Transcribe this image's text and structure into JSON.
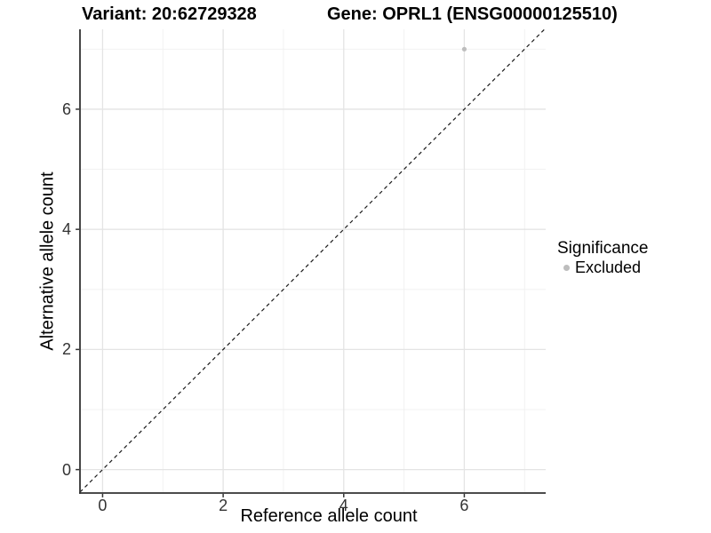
{
  "chart_data": {
    "type": "scatter",
    "title_left": "Variant: 20:62729328",
    "title_right": "Gene: OPRL1 (ENSG00000125510)",
    "xlabel": "Reference allele count",
    "ylabel": "Alternative allele count",
    "xlim": [
      -0.375,
      7.35
    ],
    "ylim": [
      -0.39,
      7.33
    ],
    "x_ticks": [
      0,
      2,
      4,
      6
    ],
    "y_ticks": [
      0,
      2,
      4,
      6
    ],
    "x_minor_ticks": [
      1,
      3,
      5,
      7
    ],
    "y_minor_ticks": [
      1,
      3,
      5,
      7
    ],
    "grid": "on",
    "reference_line": {
      "type": "identity",
      "style": "dashed",
      "x1": -0.375,
      "y1": -0.375,
      "x2": 7.33,
      "y2": 7.33
    },
    "series": [
      {
        "name": "Excluded",
        "marker": "circle",
        "color": "#bdbdbd",
        "points": [
          {
            "x": 6,
            "y": 7
          }
        ]
      }
    ],
    "legend": {
      "title": "Significance",
      "position": "right",
      "items": [
        {
          "label": "Excluded",
          "color": "#bdbdbd"
        }
      ]
    }
  },
  "colors": {
    "background": "#ffffff",
    "axis_line": "#333333",
    "tick_mark": "#333333",
    "tick_label": "#333333",
    "grid_major": "#e4e4e4",
    "grid_minor": "#f0f0f0",
    "reference_line": "#1a1a1a",
    "point": "#bdbdbd"
  }
}
